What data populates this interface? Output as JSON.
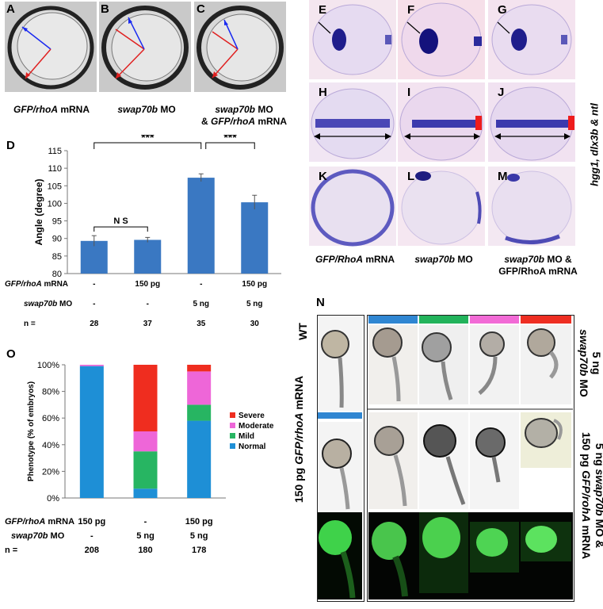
{
  "panels_abc": {
    "A": {
      "label": "A",
      "cap1": "GFP/rhoA",
      "cap2": " mRNA"
    },
    "B": {
      "label": "B",
      "cap1": "swap70b",
      "cap2": " MO"
    },
    "C": {
      "label": "C",
      "cap1": "swap70b",
      "cap2": " MO",
      "cap3": "& ",
      "cap4": "GFP/rhoA",
      "cap5": " mRNA"
    }
  },
  "panels_ej": {
    "labels": [
      "E",
      "F",
      "G",
      "H",
      "I",
      "J",
      "K",
      "L",
      "M"
    ],
    "side_label": "hgg1, dlx3b & ntl",
    "cap_k1": "GFP/RhoA",
    "cap_k2": " mRNA",
    "cap_l1": "swap70b",
    "cap_l2": " MO",
    "cap_m1": "swap70b",
    "cap_m2": " MO &",
    "cap_m3": "GFP/RhoA mRNA"
  },
  "panel_d": {
    "label": "D",
    "sig1": "***",
    "sig2": "***",
    "ns": "N S",
    "table": {
      "row1_label1": "GFP/rhoA",
      "row1_label2": " mRNA",
      "row1": [
        "-",
        "150 pg",
        "-",
        "150 pg"
      ],
      "row2_label1": "swap70b",
      "row2_label2": " MO",
      "row2": [
        "-",
        "-",
        "5 ng",
        "5 ng"
      ],
      "row3_label": "n =",
      "row3": [
        "28",
        "37",
        "35",
        "30"
      ]
    }
  },
  "panel_o": {
    "label": "O",
    "table": {
      "row1_label1": "GFP/rhoA",
      "row1_label2": " mRNA",
      "row1": [
        "150 pg",
        "-",
        "150 pg"
      ],
      "row2_label1": "swap70b",
      "row2_label2": " MO",
      "row2": [
        "-",
        "5 ng",
        "5 ng"
      ],
      "row3_label": "n =",
      "row3": [
        "208",
        "180",
        "178"
      ]
    }
  },
  "panel_n": {
    "label": "N",
    "wt": "WT",
    "left_label1": "150 pg ",
    "left_label2": "GFP/rhoA",
    "left_label3": " mRNA",
    "right_top1": "5 ng",
    "right_top2": "swap70b",
    "right_top3": " MO",
    "right_bot1": "5 ng ",
    "right_bot2": "swap70b",
    "right_bot3": " MO &",
    "right_bot4": "150 pg ",
    "right_bot5": "GFP/rohA",
    "right_bot6": " mRNA",
    "strip_colors": [
      "#2f86d2",
      "#22b35b",
      "#f26ad6",
      "#ee2e22"
    ]
  },
  "chart_data": [
    {
      "type": "bar",
      "categories": [
        "1",
        "2",
        "3",
        "4"
      ],
      "values": [
        89.3,
        89.6,
        107.3,
        100.3
      ],
      "errors": [
        1.5,
        0.7,
        1.1,
        2.0
      ],
      "title": "",
      "xlabel": "",
      "ylabel": "Angle (degree)",
      "ylim": [
        80,
        115
      ],
      "yticks": [
        80,
        85,
        90,
        95,
        100,
        105,
        110,
        115
      ],
      "grid": false,
      "colors": {
        "bar": "#3a78c2"
      }
    },
    {
      "type": "bar",
      "stacked": true,
      "categories": [
        "1",
        "2",
        "3"
      ],
      "series": [
        {
          "name": "Normal",
          "values": [
            99,
            7,
            58
          ],
          "color": "#1e8fd6"
        },
        {
          "name": "Mild",
          "values": [
            0,
            28,
            12
          ],
          "color": "#27b562"
        },
        {
          "name": "Moderate",
          "values": [
            1,
            15,
            25
          ],
          "color": "#ee66d8"
        },
        {
          "name": "Severe",
          "values": [
            0,
            50,
            5
          ],
          "color": "#ef2d1f"
        }
      ],
      "ylabel": "Phenotype (% of embryos)",
      "ylim": [
        0,
        100
      ],
      "yticks": [
        "0%",
        "20%",
        "40%",
        "60%",
        "80%",
        "100%"
      ],
      "legend": "right",
      "legend_order": [
        "Severe",
        "Moderate",
        "Mild",
        "Normal"
      ]
    }
  ]
}
